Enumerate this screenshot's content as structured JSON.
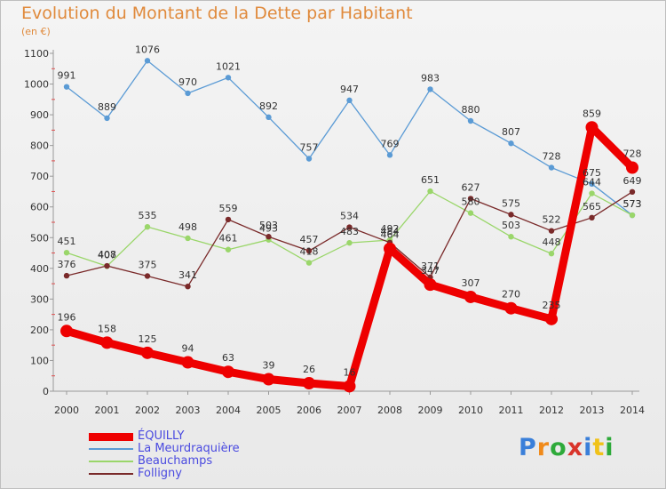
{
  "title": "Evolution du Montant de la Dette par Habitant",
  "subtitle": "(en €)",
  "logo": {
    "text": "Proxiti",
    "colors": [
      "#3a7fd9",
      "#f08a1a",
      "#2eaa3a",
      "#d9342b",
      "#3a7fd9",
      "#f0c21a",
      "#2eaa3a"
    ]
  },
  "chart_data": {
    "type": "line",
    "title": "Evolution du Montant de la Dette par Habitant",
    "ylabel": "(en €)",
    "xlabel": "",
    "x": [
      "2000",
      "2001",
      "2002",
      "2003",
      "2004",
      "2005",
      "2006",
      "2007",
      "2008",
      "2009",
      "2010",
      "2011",
      "2012",
      "2013",
      "2014"
    ],
    "ylim": [
      0,
      1100
    ],
    "yticks": [
      0,
      100,
      200,
      300,
      400,
      500,
      600,
      700,
      800,
      900,
      1000,
      1100
    ],
    "grid": false,
    "legend_position": "bottom-left",
    "series": [
      {
        "name": "ÉQUILLY",
        "color": "#ee0000",
        "values": [
          196,
          158,
          125,
          94,
          63,
          39,
          26,
          16,
          464,
          347,
          307,
          270,
          235,
          859,
          728
        ]
      },
      {
        "name": "La Meurdraquière",
        "color": "#5b9bd5",
        "values": [
          991,
          889,
          1076,
          970,
          1021,
          892,
          757,
          947,
          769,
          983,
          880,
          807,
          728,
          675,
          573
        ]
      },
      {
        "name": "Beauchamps",
        "color": "#9ad66a",
        "values": [
          451,
          407,
          535,
          498,
          461,
          493,
          418,
          483,
          492,
          651,
          580,
          503,
          448,
          644,
          573
        ]
      },
      {
        "name": "Folligny",
        "color": "#7a2a2a",
        "values": [
          376,
          408,
          375,
          341,
          559,
          503,
          457,
          534,
          484,
          371,
          627,
          575,
          522,
          565,
          649
        ]
      }
    ]
  }
}
